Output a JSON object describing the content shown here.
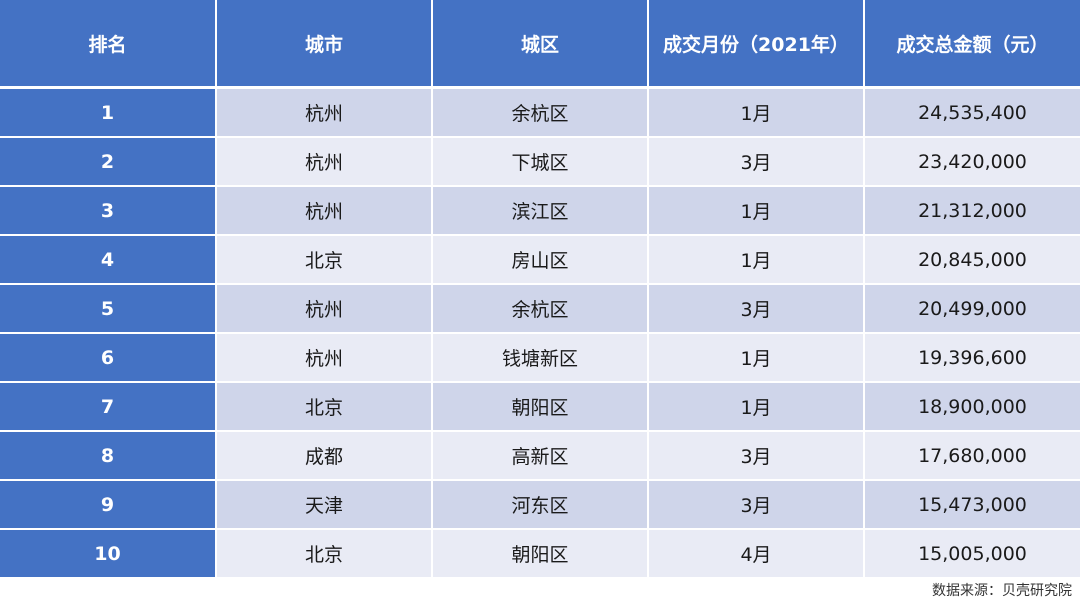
{
  "table": {
    "headers": [
      "排名",
      "城市",
      "城区",
      "成交月份（2021年）",
      "成交总金额（元）"
    ],
    "rows": [
      [
        "1",
        "杭州",
        "余杭区",
        "1月",
        "24,535,400"
      ],
      [
        "2",
        "杭州",
        "下城区",
        "3月",
        "23,420,000"
      ],
      [
        "3",
        "杭州",
        "滨江区",
        "1月",
        "21,312,000"
      ],
      [
        "4",
        "北京",
        "房山区",
        "1月",
        "20,845,000"
      ],
      [
        "5",
        "杭州",
        "余杭区",
        "3月",
        "20,499,000"
      ],
      [
        "6",
        "杭州",
        "钱塘新区",
        "1月",
        "19,396,600"
      ],
      [
        "7",
        "北京",
        "朝阳区",
        "1月",
        "18,900,000"
      ],
      [
        "8",
        "成都",
        "高新区",
        "3月",
        "17,680,000"
      ],
      [
        "9",
        "天津",
        "河东区",
        "3月",
        "15,473,000"
      ],
      [
        "10",
        "北京",
        "朝阳区",
        "4月",
        "15,005,000"
      ]
    ]
  },
  "footer": {
    "source": "数据来源：贝壳研究院"
  },
  "colors": {
    "header_bg": "#4472c4",
    "row_odd": "#cfd5ea",
    "row_even": "#e9ebf5"
  }
}
